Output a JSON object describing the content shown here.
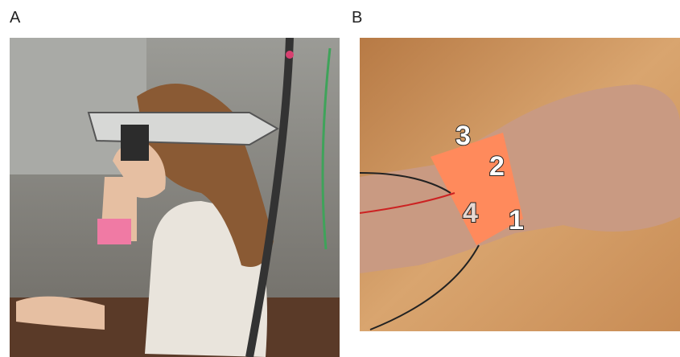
{
  "panels": [
    {
      "label": "A"
    },
    {
      "label": "B",
      "electrodes": [
        "3",
        "2",
        "4",
        "1"
      ]
    }
  ]
}
